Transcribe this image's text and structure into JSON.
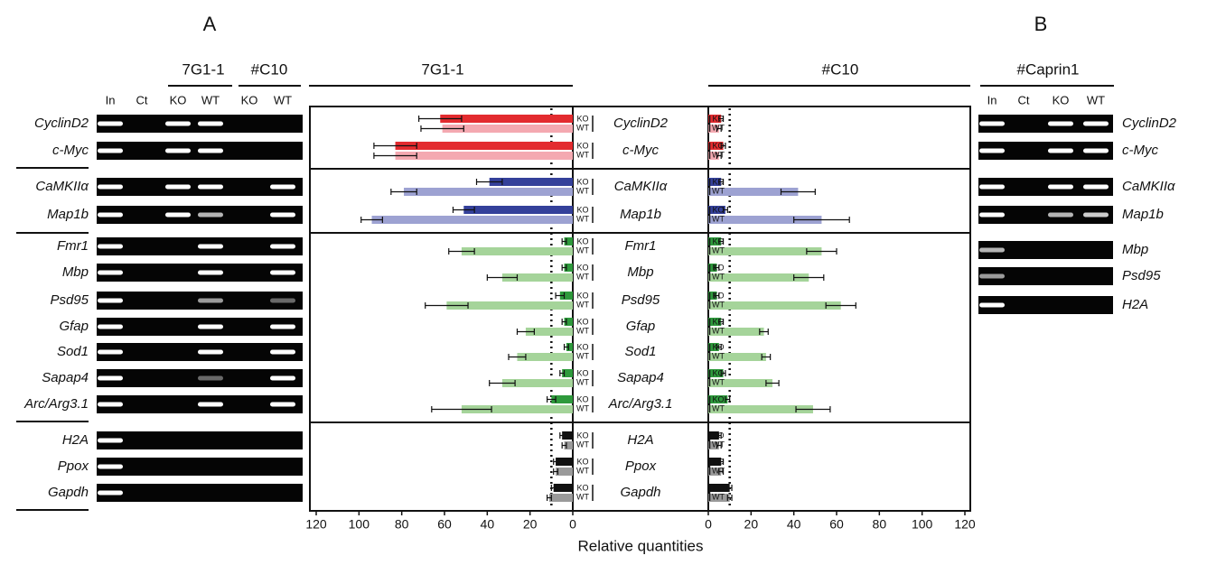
{
  "panel_letters": [
    "A",
    "B"
  ],
  "gels": [
    {
      "headers": [
        "7G1-1",
        "#C10"
      ],
      "lanes": [
        "In",
        "Ct",
        "KO",
        "WT",
        "KO",
        "WT"
      ],
      "genes": [
        "CyclinD2",
        "c-Myc",
        "CaMKIIα",
        "Map1b",
        "Fmr1",
        "Mbp",
        "Psd95",
        "Gfap",
        "Sod1",
        "Sapap4",
        "Arc/Arg3.1",
        "H2A",
        "Ppox",
        "Gapdh"
      ]
    },
    {
      "headers": [
        "#Caprin1"
      ],
      "lanes": [
        "In",
        "Ct",
        "KO",
        "WT"
      ],
      "genes": [
        "CyclinD2",
        "c-Myc",
        "CaMKIIα",
        "Map1b",
        "Mbp",
        "Psd95",
        "H2A"
      ]
    }
  ],
  "chart_data": {
    "type": "bar",
    "orientation": "horizontal",
    "xlabel": "Relative quantities",
    "categories": [
      "CyclinD2",
      "c-Myc",
      "CaMKIIα",
      "Map1b",
      "Fmr1",
      "Mbp",
      "Psd95",
      "Gfap",
      "Sod1",
      "Sapap4",
      "Arc/Arg3.1",
      "H2A",
      "Ppox",
      "Gapdh"
    ],
    "xlim": [
      0,
      120
    ],
    "xticks": [
      0,
      20,
      40,
      60,
      80,
      100,
      120
    ],
    "reference_line": 10,
    "panels": [
      {
        "title": "7G1-1",
        "series": [
          {
            "name": "KO",
            "colors": [
              "#e32b2f",
              "#e32b2f",
              "#34409a",
              "#34409a",
              "#2e9a3c",
              "#2e9a3c",
              "#2e9a3c",
              "#2e9a3c",
              "#2e9a3c",
              "#2e9a3c",
              "#2e9a3c",
              "#111111",
              "#111111",
              "#111111"
            ],
            "values": [
              62,
              83,
              39,
              51,
              4,
              4,
              6,
              4,
              3,
              5,
              10,
              5,
              8,
              9
            ],
            "errors": [
              10,
              10,
              6,
              5,
              1,
              1,
              2,
              1,
              1,
              1,
              2,
              1,
              1,
              1
            ]
          },
          {
            "name": "WT",
            "colors": [
              "#f4a9b1",
              "#f4a9b1",
              "#9da2d2",
              "#9da2d2",
              "#a5d49a",
              "#a5d49a",
              "#a5d49a",
              "#a5d49a",
              "#a5d49a",
              "#a5d49a",
              "#a5d49a",
              "#9a9a9a",
              "#9a9a9a",
              "#9a9a9a"
            ],
            "values": [
              61,
              83,
              79,
              94,
              52,
              33,
              59,
              22,
              26,
              33,
              52,
              4,
              8,
              11
            ],
            "errors": [
              10,
              10,
              6,
              5,
              6,
              7,
              10,
              4,
              4,
              6,
              14,
              1,
              1,
              1
            ]
          }
        ]
      },
      {
        "title": "#C10",
        "series": [
          {
            "name": "KO",
            "colors": [
              "#e32b2f",
              "#e32b2f",
              "#34409a",
              "#34409a",
              "#2e9a3c",
              "#2e9a3c",
              "#2e9a3c",
              "#2e9a3c",
              "#2e9a3c",
              "#2e9a3c",
              "#2e9a3c",
              "#111111",
              "#111111",
              "#111111"
            ],
            "values": [
              6,
              7,
              6,
              8,
              6,
              4,
              4,
              6,
              5,
              7,
              9,
              5,
              6,
              10
            ],
            "errors": [
              1,
              1,
              1,
              1,
              1,
              1,
              1,
              1,
              1,
              1,
              1,
              1,
              1,
              1
            ]
          },
          {
            "name": "WT",
            "colors": [
              "#f4a9b1",
              "#f4a9b1",
              "#9da2d2",
              "#9da2d2",
              "#a5d49a",
              "#a5d49a",
              "#a5d49a",
              "#a5d49a",
              "#a5d49a",
              "#a5d49a",
              "#a5d49a",
              "#9a9a9a",
              "#9a9a9a",
              "#9a9a9a"
            ],
            "values": [
              5,
              5,
              42,
              53,
              53,
              47,
              62,
              26,
              27,
              30,
              49,
              5,
              6,
              10
            ],
            "errors": [
              1,
              1,
              8,
              13,
              7,
              7,
              7,
              2,
              2,
              3,
              8,
              1,
              1,
              1
            ]
          }
        ]
      }
    ]
  }
}
